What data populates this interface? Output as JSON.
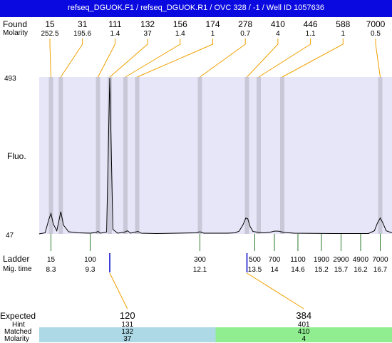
{
  "title": "refseq_DGUOK.F1 / refseq_DGUOK.R1 / OVC 328 / -1 / Well ID 1057636",
  "labels": {
    "found": "Found",
    "molarity": "Molarity",
    "fluo": "Fluo.",
    "ladder": "Ladder",
    "mig_time": "Mig. time",
    "expected": "Expected",
    "hint": "Hint",
    "matched": "Matched",
    "molarity_bottom": "Molarity"
  },
  "colors": {
    "title_bg": "#0a0ae0",
    "plot_bg": "#e6e6f8",
    "band": "#c8c8d8",
    "leader": "#f0a000",
    "ladder_tick": "#2a7a2a",
    "marker": "#0000cc",
    "matched_blue": "#add8e6",
    "matched_green": "#90ee90"
  },
  "chart_data": {
    "type": "line",
    "y_axis": {
      "min_label": "47",
      "max_label": "493",
      "min": 47,
      "max": 493
    },
    "x_axis": {
      "name": "Mig. time",
      "min": 8.0,
      "max": 17.0
    },
    "found_peaks": [
      {
        "size": "15",
        "molarity": "252.5",
        "time": 8.3
      },
      {
        "size": "31",
        "molarity": "195.6",
        "time": 8.55
      },
      {
        "size": "111",
        "molarity": "1.4",
        "time": 9.5
      },
      {
        "size": "132",
        "molarity": "37",
        "time": 9.8
      },
      {
        "size": "156",
        "molarity": "1.4",
        "time": 10.2
      },
      {
        "size": "174",
        "molarity": "1",
        "time": 10.5
      },
      {
        "size": "278",
        "molarity": "0.7",
        "time": 12.1
      },
      {
        "size": "410",
        "molarity": "4",
        "time": 13.3
      },
      {
        "size": "446",
        "molarity": "1.1",
        "time": 13.6
      },
      {
        "size": "588",
        "molarity": "1",
        "time": 14.2
      },
      {
        "size": "7000",
        "molarity": "0.5",
        "time": 16.7
      }
    ],
    "ladder": [
      {
        "size": "15",
        "time": 8.3,
        "time_label": "8.3"
      },
      {
        "size": "100",
        "time": 9.3,
        "time_label": "9.3"
      },
      {
        "size": "300",
        "time": 12.1,
        "time_label": "12.1"
      },
      {
        "size": "500",
        "time": 13.5,
        "time_label": "13.5"
      },
      {
        "size": "700",
        "time": 14.0,
        "time_label": "14"
      },
      {
        "size": "1100",
        "time": 14.6,
        "time_label": "14.6"
      },
      {
        "size": "1900",
        "time": 15.2,
        "time_label": "15.2"
      },
      {
        "size": "2900",
        "time": 15.7,
        "time_label": "15.7"
      },
      {
        "size": "4900",
        "time": 16.2,
        "time_label": "16.2"
      },
      {
        "size": "7000",
        "time": 16.7,
        "time_label": "16.7"
      }
    ],
    "trace": [
      [
        8.0,
        47
      ],
      [
        8.15,
        50
      ],
      [
        8.25,
        90
      ],
      [
        8.3,
        105
      ],
      [
        8.36,
        75
      ],
      [
        8.45,
        56
      ],
      [
        8.55,
        110
      ],
      [
        8.62,
        72
      ],
      [
        8.75,
        53
      ],
      [
        9.0,
        50
      ],
      [
        9.3,
        49
      ],
      [
        9.45,
        51
      ],
      [
        9.5,
        54
      ],
      [
        9.56,
        49
      ],
      [
        9.72,
        52
      ],
      [
        9.8,
        490
      ],
      [
        9.88,
        60
      ],
      [
        10.0,
        49
      ],
      [
        10.18,
        52
      ],
      [
        10.25,
        56
      ],
      [
        10.33,
        49
      ],
      [
        10.45,
        52
      ],
      [
        10.52,
        54
      ],
      [
        10.6,
        49
      ],
      [
        11.0,
        48
      ],
      [
        12.0,
        50
      ],
      [
        12.1,
        53
      ],
      [
        12.2,
        49
      ],
      [
        12.8,
        49
      ],
      [
        13.0,
        50
      ],
      [
        13.1,
        55
      ],
      [
        13.2,
        73
      ],
      [
        13.27,
        92
      ],
      [
        13.32,
        90
      ],
      [
        13.38,
        68
      ],
      [
        13.45,
        54
      ],
      [
        13.6,
        51
      ],
      [
        13.75,
        50
      ],
      [
        13.9,
        52
      ],
      [
        14.0,
        55
      ],
      [
        14.1,
        55
      ],
      [
        14.25,
        51
      ],
      [
        14.5,
        49
      ],
      [
        15.5,
        48
      ],
      [
        16.4,
        48
      ],
      [
        16.55,
        56
      ],
      [
        16.63,
        78
      ],
      [
        16.7,
        92
      ],
      [
        16.76,
        80
      ],
      [
        16.85,
        56
      ],
      [
        17.0,
        50
      ]
    ],
    "expected": [
      {
        "expected": "120",
        "hint": "131",
        "matched": "132",
        "molarity": "37",
        "peak_index": 3,
        "color": "#add8e6"
      },
      {
        "expected": "384",
        "hint": "401",
        "matched": "410",
        "molarity": "4",
        "peak_index": 7,
        "color": "#90ee90"
      }
    ]
  }
}
